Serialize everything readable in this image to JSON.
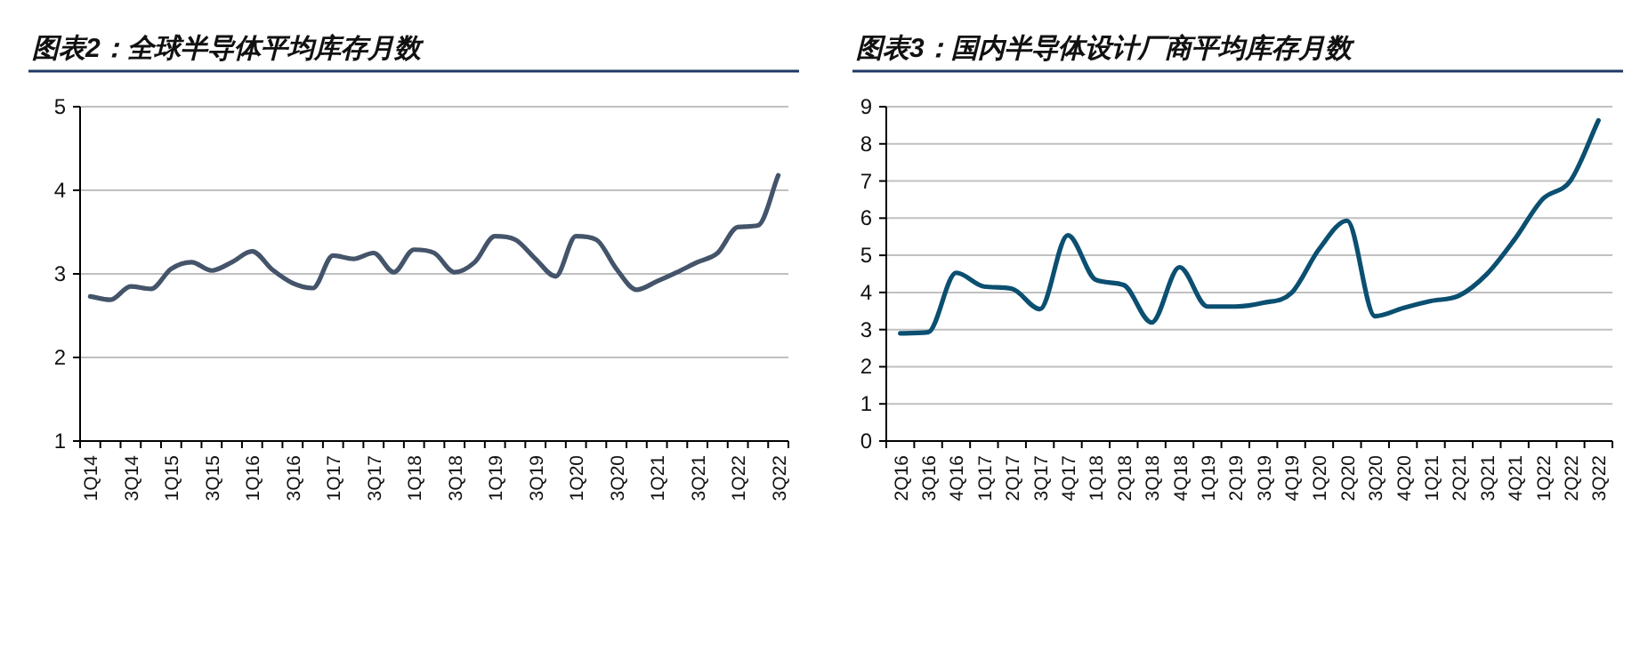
{
  "chart_data": [
    {
      "type": "line",
      "title": "图表2：全球半导体平均库存月数",
      "categories": [
        "1Q14",
        null,
        "3Q14",
        null,
        "1Q15",
        null,
        "3Q15",
        null,
        "1Q16",
        null,
        "3Q16",
        null,
        "1Q17",
        null,
        "3Q17",
        null,
        "1Q18",
        null,
        "3Q18",
        null,
        "1Q19",
        null,
        "3Q19",
        null,
        "1Q20",
        null,
        "3Q20",
        null,
        "1Q21",
        null,
        "3Q21",
        null,
        "1Q22",
        null,
        "3Q22"
      ],
      "series": [
        {
          "color": "#44546a",
          "values": [
            2.73,
            2.69,
            2.85,
            2.82,
            3.06,
            3.14,
            3.04,
            3.14,
            3.27,
            3.05,
            2.89,
            2.83,
            3.22,
            3.18,
            3.25,
            3.02,
            3.29,
            3.25,
            3.02,
            3.14,
            3.45,
            3.41,
            3.18,
            2.97,
            3.45,
            3.41,
            3.06,
            2.81,
            2.91,
            3.02,
            3.14,
            3.25,
            3.56,
            3.58,
            4.18
          ]
        }
      ],
      "ylim": [
        1,
        5
      ],
      "yticks": [
        1,
        2,
        3,
        4,
        5
      ],
      "grid": "y",
      "line_style": "solid",
      "marker": "none"
    },
    {
      "type": "line",
      "title": "图表3：国内半导体设计厂商平均库存月数",
      "categories": [
        "2Q16",
        "3Q16",
        "4Q16",
        "1Q17",
        "2Q17",
        "3Q17",
        "4Q17",
        "1Q18",
        "2Q18",
        "3Q18",
        "4Q18",
        "1Q19",
        "2Q19",
        "3Q19",
        "4Q19",
        "1Q20",
        "2Q20",
        "3Q20",
        "4Q20",
        "1Q21",
        "2Q21",
        "3Q21",
        "4Q21",
        "1Q22",
        "2Q22",
        "3Q22"
      ],
      "series": [
        {
          "color": "#0b4f71",
          "values": [
            2.9,
            2.93,
            4.53,
            4.16,
            4.1,
            3.55,
            5.54,
            4.34,
            4.2,
            3.19,
            4.68,
            3.62,
            3.62,
            3.72,
            3.98,
            5.17,
            5.93,
            3.36,
            3.58,
            3.77,
            3.91,
            4.49,
            5.43,
            6.51,
            7.01,
            8.63
          ]
        }
      ],
      "ylim": [
        0,
        9
      ],
      "yticks": [
        0,
        1,
        2,
        3,
        4,
        5,
        6,
        7,
        8,
        9
      ],
      "grid": "y",
      "line_style": "solid",
      "marker": "none"
    }
  ]
}
